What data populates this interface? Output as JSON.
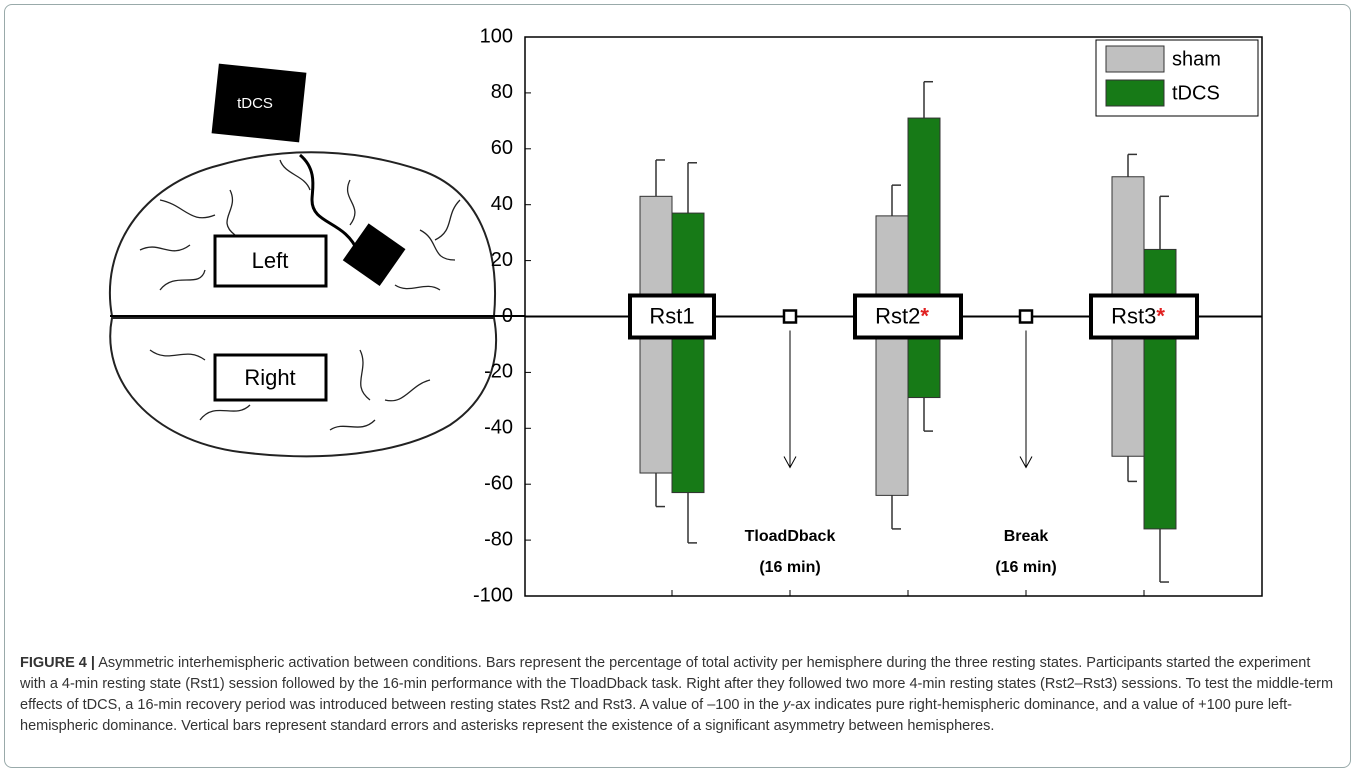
{
  "illustration": {
    "device": "tDCS",
    "left": "Left",
    "right": "Right"
  },
  "chart_data": {
    "type": "bar",
    "sessions": [
      "Rst1",
      "Rst2",
      "Rst3"
    ],
    "significant": [
      false,
      true,
      true
    ],
    "significance_marker": "*",
    "events": [
      {
        "label": "TloadDback",
        "duration": "(16 min)"
      },
      {
        "label": "Break",
        "duration": "(16 min)"
      }
    ],
    "series": [
      {
        "name": "sham",
        "color": "#c0c0c0",
        "left_values": [
          43,
          36,
          50
        ],
        "left_errors": [
          13,
          11,
          8
        ],
        "right_values": [
          -56,
          -64,
          -50
        ],
        "right_errors": [
          12,
          12,
          9
        ]
      },
      {
        "name": "tDCS",
        "color": "#177a17",
        "left_values": [
          37,
          71,
          24
        ],
        "left_errors": [
          18,
          13,
          19
        ],
        "right_values": [
          -63,
          -29,
          -76
        ],
        "right_errors": [
          18,
          12,
          19
        ]
      }
    ],
    "ylim": [
      -100,
      100
    ],
    "yticks": [
      -100,
      -80,
      -60,
      -40,
      -20,
      0,
      20,
      40,
      60,
      80,
      100
    ],
    "legend": "top-right"
  },
  "caption": {
    "label": "FIGURE 4 |",
    "text_before": " Asymmetric interhemispheric activation between conditions. Bars represent the percentage of total activity per hemisphere during the three resting states. Participants started the experiment with a 4-min resting state (Rst1) session followed by the 16-min performance with the TloadDback task. Right after they followed two more 4-min resting states (Rst2–Rst3) sessions. To test the middle-term effects of tDCS, a 16-min recovery period was introduced between resting states Rst2 and Rst3. A value of –100 in the ",
    "italic": "y",
    "text_after": "-ax indicates pure right-hemispheric dominance, and a value of +100 pure left-hemispheric dominance. Vertical bars represent standard errors and asterisks represent the existence of a significant asymmetry between hemispheres."
  }
}
